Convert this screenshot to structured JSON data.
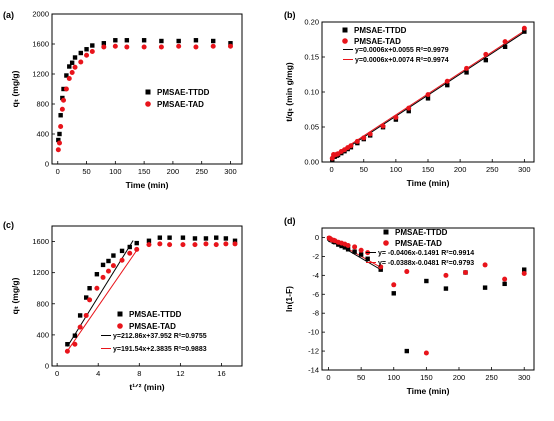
{
  "colors": {
    "series_1": "#000000",
    "series_2": "#e8141b",
    "fit_1": "#000000",
    "fit_2": "#e8141b"
  },
  "chart_data": [
    {
      "panel": "(a)",
      "type": "scatter",
      "xlabel": "Time (min)",
      "ylabel": "qₜ (mg/g)",
      "xlim": [
        -10,
        320
      ],
      "ylim": [
        0,
        2000
      ],
      "xticks": [
        "0",
        "50",
        "100",
        "150",
        "200",
        "250",
        "300"
      ],
      "yticks": [
        "0",
        "400",
        "800",
        "1200",
        "1600",
        "2000"
      ],
      "legend": "center-right",
      "series": [
        {
          "name": "PMSAE-TTDD",
          "marker": "square",
          "color": "#000000",
          "x": [
            1,
            3,
            5,
            8,
            10,
            15,
            20,
            25,
            30,
            40,
            50,
            60,
            80,
            100,
            120,
            150,
            180,
            210,
            240,
            270,
            300
          ],
          "y": [
            320,
            400,
            650,
            880,
            1000,
            1180,
            1300,
            1350,
            1420,
            1480,
            1530,
            1580,
            1610,
            1650,
            1650,
            1650,
            1640,
            1640,
            1650,
            1640,
            1610
          ]
        },
        {
          "name": "PMSAE-TAD",
          "marker": "circle",
          "color": "#e8141b",
          "x": [
            1,
            3,
            5,
            8,
            10,
            15,
            20,
            25,
            30,
            40,
            50,
            60,
            80,
            100,
            120,
            150,
            180,
            210,
            240,
            270,
            300
          ],
          "y": [
            190,
            280,
            500,
            730,
            850,
            1000,
            1140,
            1220,
            1290,
            1360,
            1450,
            1500,
            1560,
            1570,
            1560,
            1560,
            1560,
            1570,
            1560,
            1570,
            1570
          ]
        }
      ]
    },
    {
      "panel": "(b)",
      "type": "scatter",
      "xlabel": "Time (min)",
      "ylabel": "t/qₜ (min g/mg)",
      "xlim": [
        -15,
        315
      ],
      "ylim": [
        0,
        0.2
      ],
      "xticks": [
        "0",
        "50",
        "100",
        "150",
        "200",
        "250",
        "300"
      ],
      "yticks": [
        "0.00",
        "0.05",
        "0.10",
        "0.15",
        "0.20"
      ],
      "legend": "top-left",
      "series": [
        {
          "name": "PMSAE-TTDD",
          "marker": "square",
          "color": "#000000",
          "x": [
            1,
            3,
            5,
            8,
            10,
            15,
            20,
            25,
            30,
            40,
            50,
            60,
            80,
            100,
            120,
            150,
            180,
            210,
            240,
            270,
            300
          ],
          "y": [
            0.0031,
            0.0075,
            0.0077,
            0.0091,
            0.01,
            0.0127,
            0.0154,
            0.0185,
            0.0211,
            0.027,
            0.0327,
            0.038,
            0.0497,
            0.0606,
            0.0727,
            0.0909,
            0.1098,
            0.128,
            0.1455,
            0.1646,
            0.1863
          ]
        },
        {
          "name": "PMSAE-TAD",
          "marker": "circle",
          "color": "#e8141b",
          "x": [
            1,
            3,
            5,
            8,
            10,
            15,
            20,
            25,
            30,
            40,
            50,
            60,
            80,
            100,
            120,
            150,
            180,
            210,
            240,
            270,
            300
          ],
          "y": [
            0.0053,
            0.0107,
            0.01,
            0.011,
            0.0118,
            0.015,
            0.0175,
            0.0205,
            0.0233,
            0.0294,
            0.0345,
            0.04,
            0.0513,
            0.0637,
            0.0769,
            0.0962,
            0.1154,
            0.1338,
            0.1538,
            0.172,
            0.1911
          ]
        }
      ],
      "fits": [
        {
          "label": "y=0.0006x+0.0055  R²=0.9979",
          "color": "#000000",
          "slope": 0.0006,
          "intercept": 0.0055,
          "x_range": [
            1,
            300
          ]
        },
        {
          "label": "y=0.0006x+0.0074  R²=0.9974",
          "color": "#e8141b",
          "slope": 0.0006,
          "intercept": 0.0074,
          "x_range": [
            1,
            300
          ]
        }
      ]
    },
    {
      "panel": "(c)",
      "type": "scatter",
      "xlabel": "t¹ᐟ² (min)",
      "ylabel": "qₜ (mg/g)",
      "xlim": [
        -0.5,
        18
      ],
      "ylim": [
        0,
        1800
      ],
      "xticks": [
        "0",
        "4",
        "8",
        "12",
        "16"
      ],
      "yticks": [
        "0",
        "400",
        "800",
        "1200",
        "1600"
      ],
      "legend": "bottom-right",
      "series": [
        {
          "name": "PMSAE-TTDD",
          "marker": "square",
          "color": "#000000",
          "x": [
            1,
            1.73,
            2.24,
            2.83,
            3.16,
            3.87,
            4.47,
            5,
            5.48,
            6.32,
            7.07,
            7.75,
            8.94,
            10,
            10.95,
            12.25,
            13.42,
            14.49,
            15.49,
            16.43,
            17.32
          ],
          "y": [
            280,
            390,
            650,
            880,
            1000,
            1180,
            1300,
            1350,
            1420,
            1480,
            1530,
            1580,
            1610,
            1650,
            1650,
            1650,
            1640,
            1640,
            1650,
            1640,
            1610
          ]
        },
        {
          "name": "PMSAE-TAD",
          "marker": "circle",
          "color": "#e8141b",
          "x": [
            1,
            1.73,
            2.24,
            2.83,
            3.16,
            3.87,
            4.47,
            5,
            5.48,
            6.32,
            7.07,
            7.75,
            8.94,
            10,
            10.95,
            12.25,
            13.42,
            14.49,
            15.49,
            16.43,
            17.32
          ],
          "y": [
            190,
            280,
            500,
            650,
            850,
            1000,
            1140,
            1220,
            1290,
            1360,
            1450,
            1500,
            1560,
            1570,
            1560,
            1560,
            1560,
            1570,
            1560,
            1570,
            1570
          ]
        }
      ],
      "fits": [
        {
          "label": "y=212.86x+37.952  R²=0.9755",
          "color": "#000000",
          "slope": 212.86,
          "intercept": 37.952,
          "x_range": [
            1,
            7.4
          ]
        },
        {
          "label": "y=191.54x+2.3835  R²=0.9883",
          "color": "#e8141b",
          "slope": 191.54,
          "intercept": 2.3835,
          "x_range": [
            1,
            7.9
          ]
        }
      ]
    },
    {
      "panel": "(d)",
      "type": "scatter",
      "xlabel": "Time (min)",
      "ylabel": "ln(1-F)",
      "xlim": [
        -10,
        315
      ],
      "ylim": [
        -14,
        1
      ],
      "xticks": [
        "0",
        "50",
        "100",
        "150",
        "200",
        "250",
        "300"
      ],
      "yticks": [
        "0",
        "-2",
        "-4",
        "-6",
        "-8",
        "-10",
        "-12",
        "-14"
      ],
      "legend": "top-right",
      "series": [
        {
          "name": "PMSAE-TTDD",
          "marker": "square",
          "color": "#000000",
          "x": [
            1,
            3,
            5,
            8,
            10,
            15,
            20,
            25,
            30,
            40,
            50,
            60,
            80,
            100,
            120,
            150,
            180,
            210,
            240,
            270,
            300
          ],
          "y": [
            -0.1,
            -0.25,
            -0.3,
            -0.45,
            -0.5,
            -0.75,
            -0.9,
            -1.05,
            -1.25,
            -1.5,
            -1.8,
            -2.25,
            -3.4,
            -5.9,
            -12.0,
            -4.6,
            -5.4,
            -3.7,
            -5.3,
            -4.9,
            -3.4
          ]
        },
        {
          "name": "PMSAE-TAD",
          "marker": "circle",
          "color": "#e8141b",
          "x": [
            1,
            3,
            5,
            8,
            10,
            15,
            20,
            25,
            30,
            40,
            50,
            60,
            80,
            100,
            120,
            150,
            180,
            210,
            240,
            270,
            300
          ],
          "y": [
            -0.05,
            -0.15,
            -0.25,
            -0.3,
            -0.35,
            -0.5,
            -0.6,
            -0.7,
            -0.85,
            -1.0,
            -1.35,
            -1.6,
            -3.1,
            -5.0,
            -3.6,
            -12.2,
            -4.0,
            -3.7,
            -2.9,
            -4.4,
            -3.8
          ]
        }
      ],
      "fits": [
        {
          "label": "y= -0.0406x-0.1491  R²=0.9914",
          "color": "#000000",
          "slope": -0.0406,
          "intercept": -0.1491,
          "x_range": [
            0,
            80
          ]
        },
        {
          "label": "y= -0.0388x-0.0481  R²=0.9793",
          "color": "#e8141b",
          "slope": -0.0388,
          "intercept": -0.0481,
          "x_range": [
            0,
            80
          ]
        }
      ]
    }
  ]
}
